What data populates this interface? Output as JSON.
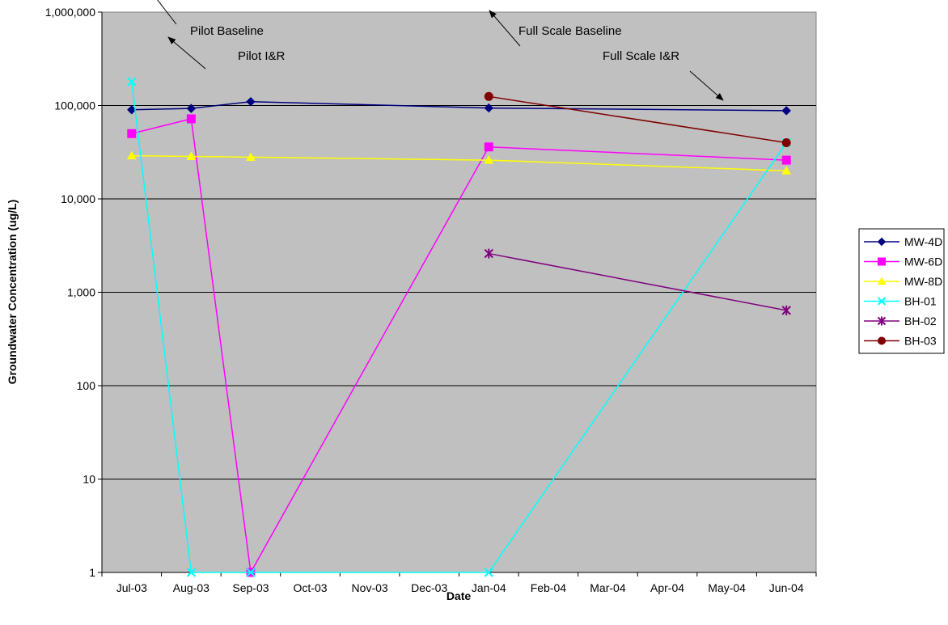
{
  "chart_data": {
    "type": "line",
    "title": "",
    "xlabel": "Date",
    "ylabel": "Groundwater Concentration (ug/L)",
    "yscale": "log",
    "ylim": [
      1,
      1000000
    ],
    "y_ticks": [
      "1",
      "10",
      "100",
      "1,000",
      "10,000",
      "100,000",
      "1,000,000"
    ],
    "categories": [
      "Jul-03",
      "Aug-03",
      "Sep-03",
      "Oct-03",
      "Nov-03",
      "Dec-03",
      "Jan-04",
      "Feb-04",
      "Mar-04",
      "Apr-04",
      "May-04",
      "Jun-04"
    ],
    "grid": "horizontal major gridlines",
    "plot_background": "#c0c0c0",
    "legend_position": "right",
    "series": [
      {
        "name": "MW-4D",
        "color": "#000080",
        "marker": "diamond",
        "points": [
          [
            "Jul-03",
            90000
          ],
          [
            "Aug-03",
            93000
          ],
          [
            "Sep-03",
            110000
          ],
          [
            "Jan-04",
            94000
          ],
          [
            "Jun-04",
            88000
          ]
        ]
      },
      {
        "name": "MW-6D",
        "color": "#ff00ff",
        "marker": "square",
        "points": [
          [
            "Jul-03",
            50000
          ],
          [
            "Aug-03",
            72000
          ],
          [
            "Sep-03",
            1
          ],
          [
            "Jan-04",
            36000
          ],
          [
            "Jun-04",
            26000
          ]
        ]
      },
      {
        "name": "MW-8D",
        "color": "#ffff00",
        "marker": "triangle",
        "points": [
          [
            "Jul-03",
            29000
          ],
          [
            "Aug-03",
            28500
          ],
          [
            "Sep-03",
            28000
          ],
          [
            "Jan-04",
            26000
          ],
          [
            "Jun-04",
            20000
          ]
        ]
      },
      {
        "name": "BH-01",
        "color": "#00ffff",
        "marker": "x",
        "points": [
          [
            "Jul-03",
            180000
          ],
          [
            "Aug-03",
            1
          ],
          [
            "Sep-03",
            1
          ],
          [
            "Jan-04",
            1
          ],
          [
            "Jun-04",
            40000
          ]
        ]
      },
      {
        "name": "BH-02",
        "color": "#800080",
        "marker": "star",
        "points": [
          [
            "Jan-04",
            2600
          ],
          [
            "Jun-04",
            640
          ]
        ]
      },
      {
        "name": "BH-03",
        "color": "#800000",
        "marker": "circle",
        "points": [
          [
            "Jan-04",
            125000
          ],
          [
            "Jun-04",
            40000
          ]
        ]
      }
    ],
    "annotations": [
      {
        "text": "Pilot Baseline",
        "arrow_to": [
          "Jul-03",
          180000
        ]
      },
      {
        "text": "Pilot I&R",
        "arrow_to": [
          "Aug-03",
          115000
        ]
      },
      {
        "text": "Full Scale Baseline",
        "arrow_to": [
          "Jan-04",
          125000
        ]
      },
      {
        "text": "Full Scale I&R",
        "arrow_to": [
          "May-04",
          115000
        ]
      }
    ]
  }
}
